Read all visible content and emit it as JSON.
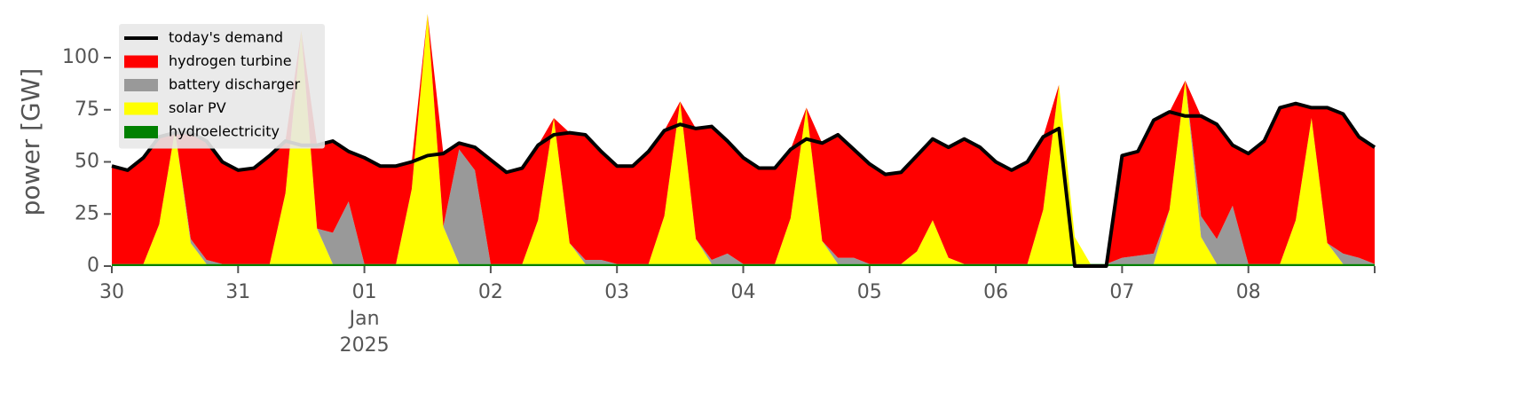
{
  "chart_data": {
    "type": "area",
    "stacked": true,
    "ylabel": "power [GW]",
    "ylim": [
      0,
      120
    ],
    "yticks": [
      0,
      25,
      50,
      75,
      100
    ],
    "xlim": [
      0,
      10
    ],
    "xticks": [
      {
        "value": 0,
        "label": "30"
      },
      {
        "value": 1,
        "label": "31"
      },
      {
        "value": 2,
        "label": "01\nJan\n2025"
      },
      {
        "value": 3,
        "label": "02"
      },
      {
        "value": 4,
        "label": "03"
      },
      {
        "value": 5,
        "label": "04"
      },
      {
        "value": 6,
        "label": "05"
      },
      {
        "value": 7,
        "label": "06"
      },
      {
        "value": 8,
        "label": "07"
      },
      {
        "value": 9,
        "label": "08"
      }
    ],
    "grid": false,
    "legend": "upper left",
    "x": [
      0,
      0.125,
      0.25,
      0.375,
      0.5,
      0.625,
      0.75,
      0.875,
      1,
      1.125,
      1.25,
      1.375,
      1.5,
      1.625,
      1.75,
      1.875,
      2,
      2.125,
      2.25,
      2.375,
      2.5,
      2.625,
      2.75,
      2.875,
      3,
      3.125,
      3.25,
      3.375,
      3.5,
      3.625,
      3.75,
      3.875,
      4,
      4.125,
      4.25,
      4.375,
      4.5,
      4.625,
      4.75,
      4.875,
      5,
      5.125,
      5.25,
      5.375,
      5.5,
      5.625,
      5.75,
      5.875,
      6,
      6.125,
      6.25,
      6.375,
      6.5,
      6.625,
      6.75,
      6.875,
      7,
      7.125,
      7.25,
      7.375,
      7.5,
      7.625,
      7.75,
      7.875,
      8,
      8.125,
      8.25,
      8.375,
      8.5,
      8.625,
      8.75,
      8.875,
      9,
      9.125,
      9.25,
      9.375,
      9.5,
      9.625,
      9.75,
      9.875,
      10
    ],
    "series": [
      {
        "name": "hydroelectricity",
        "color": "#008000",
        "values": [
          1,
          1,
          1,
          1,
          1,
          1,
          1,
          1,
          1,
          1,
          1,
          1,
          1,
          1,
          1,
          1,
          1,
          1,
          1,
          1,
          1,
          1,
          1,
          1,
          1,
          1,
          1,
          1,
          1,
          1,
          1,
          1,
          1,
          1,
          1,
          1,
          1,
          1,
          1,
          1,
          1,
          1,
          1,
          1,
          1,
          1,
          1,
          1,
          1,
          1,
          1,
          1,
          1,
          1,
          1,
          1,
          1,
          1,
          1,
          1,
          1,
          1,
          1,
          1,
          1,
          1,
          1,
          1,
          1,
          1,
          1,
          1,
          1,
          1,
          1,
          1,
          1,
          1,
          1,
          1,
          1
        ]
      },
      {
        "name": "solar PV",
        "color": "#ffff00",
        "values": [
          0,
          0,
          0,
          19,
          64,
          10,
          0,
          0,
          0,
          0,
          0,
          34,
          112,
          17,
          0,
          0,
          0,
          0,
          0,
          36,
          120,
          18,
          0,
          0,
          0,
          0,
          0,
          21,
          70,
          10,
          0,
          0,
          0,
          0,
          0,
          23,
          78,
          12,
          0,
          0,
          0,
          0,
          0,
          22,
          75,
          11,
          0,
          0,
          0,
          0,
          0,
          6,
          21,
          3,
          0,
          0,
          0,
          0,
          0,
          26,
          86,
          13,
          0,
          0,
          0,
          0,
          0,
          26,
          88,
          13,
          0,
          0,
          0,
          0,
          0,
          21,
          70,
          10,
          0,
          0,
          0
        ]
      },
      {
        "name": "battery discharger",
        "color": "#999999",
        "values": [
          0,
          0,
          0,
          0,
          0,
          2,
          2,
          0,
          0,
          0,
          0,
          0,
          0,
          0,
          15,
          30,
          0,
          0,
          0,
          0,
          0,
          0,
          55,
          45,
          0,
          0,
          0,
          0,
          0,
          0,
          2,
          2,
          0,
          0,
          0,
          0,
          0,
          0,
          2,
          5,
          0,
          0,
          0,
          0,
          0,
          0,
          3,
          3,
          0,
          0,
          0,
          0,
          0,
          0,
          0,
          0,
          0,
          0,
          0,
          0,
          0,
          0,
          0,
          0,
          3,
          4,
          5,
          0,
          0,
          10,
          12,
          28,
          0,
          0,
          0,
          0,
          0,
          0,
          5,
          3,
          0
        ]
      },
      {
        "name": "hydrogen turbine",
        "color": "#ff0000",
        "values": [
          47,
          45,
          51,
          42,
          0,
          51,
          57,
          49,
          45,
          46,
          52,
          25,
          0,
          40,
          44,
          24,
          51,
          47,
          47,
          13,
          0,
          35,
          3,
          11,
          50,
          44,
          46,
          36,
          0,
          53,
          60,
          52,
          47,
          47,
          54,
          41,
          0,
          53,
          64,
          54,
          51,
          46,
          46,
          33,
          0,
          47,
          59,
          52,
          48,
          43,
          44,
          46,
          39,
          53,
          60,
          56,
          49,
          45,
          49,
          35,
          0,
          0,
          0,
          0,
          49,
          50,
          64,
          47,
          0,
          48,
          55,
          29,
          53,
          59,
          75,
          56,
          5,
          65,
          67,
          58,
          56
        ]
      }
    ],
    "line": {
      "name": "today's demand",
      "color": "#000000",
      "values": [
        48,
        46,
        52,
        62,
        64,
        64,
        60,
        50,
        46,
        47,
        53,
        60,
        58,
        58,
        60,
        55,
        52,
        48,
        48,
        50,
        53,
        54,
        59,
        57,
        51,
        45,
        47,
        58,
        63,
        64,
        63,
        55,
        48,
        48,
        55,
        65,
        68,
        66,
        67,
        60,
        52,
        47,
        47,
        56,
        61,
        59,
        63,
        56,
        49,
        44,
        45,
        53,
        61,
        57,
        61,
        57,
        50,
        46,
        50,
        62,
        66,
        0,
        0,
        0,
        53,
        55,
        70,
        74,
        72,
        72,
        68,
        58,
        54,
        60,
        76,
        78,
        76,
        76,
        73,
        62,
        57
      ]
    }
  }
}
